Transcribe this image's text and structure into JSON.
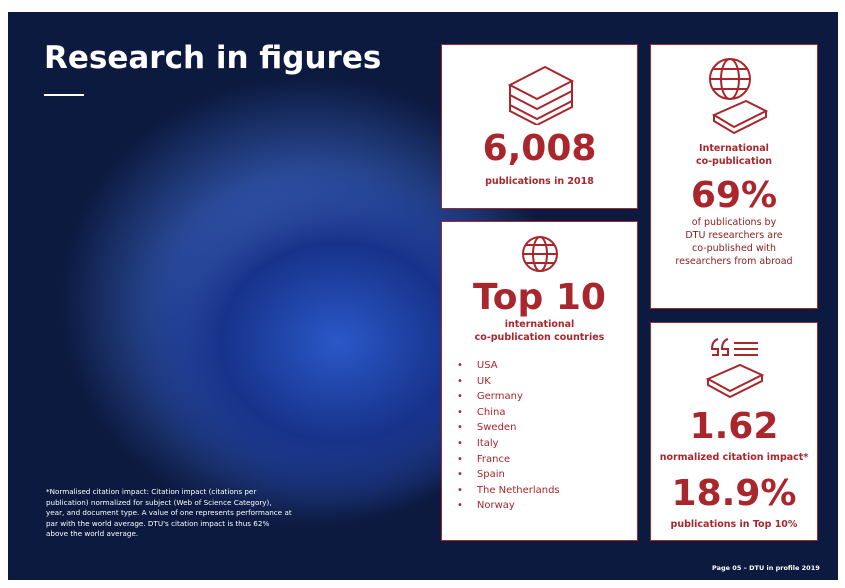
{
  "header": {
    "title": "Research in figures"
  },
  "cards": [
    {
      "value": "6,008",
      "caption": [
        "publications in 2018"
      ]
    },
    {
      "heading": [
        "International",
        "co-publication"
      ],
      "value": "69%",
      "caption": [
        "of publications by",
        "DTU researchers are",
        "co-published with",
        "researchers from abroad"
      ]
    },
    {
      "value": "Top 10",
      "caption": [
        "international",
        "co-publication countries"
      ],
      "list": [
        "USA",
        "UK",
        "Germany",
        "China",
        "Sweden",
        "Italy",
        "France",
        "Spain",
        "The Netherlands",
        "Norway"
      ]
    },
    {
      "value": "1.62",
      "caption": [
        "normalized citation impact*"
      ],
      "value2": "18.9%",
      "caption2": [
        "publications in Top 10%"
      ]
    }
  ],
  "footnote": [
    "*Normalised citation impact: Citation impact (citations per",
    "publication) normalized for subject (Web of Science Category),",
    "year, and document type. A value of one represents performance at",
    "par with the world average. DTU's citation impact is thus 62%",
    "above the world average."
  ],
  "footer": "Page 05 – DTU in profile 2019"
}
